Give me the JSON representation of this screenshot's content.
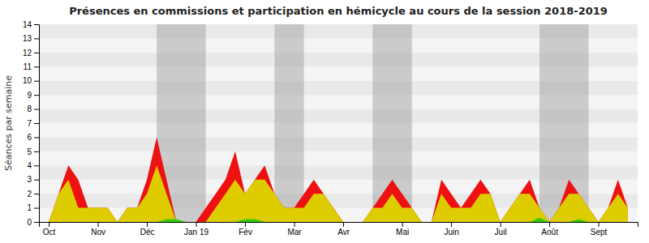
{
  "chart_data": {
    "type": "area",
    "title": "Présences en commissions et participation en hémicycle au cours de la session 2018-2019",
    "ylabel": "Séances par semaine",
    "categories": [
      "Oct",
      null,
      null,
      null,
      null,
      "Nov",
      null,
      null,
      null,
      null,
      "Déc",
      null,
      null,
      null,
      null,
      "Jan 19",
      null,
      null,
      null,
      null,
      "Fév",
      null,
      null,
      null,
      null,
      "Mar",
      null,
      null,
      null,
      null,
      "Avr",
      null,
      null,
      null,
      null,
      null,
      "Mai",
      null,
      null,
      null,
      null,
      "Juin",
      null,
      null,
      null,
      null,
      "Juil",
      null,
      null,
      null,
      null,
      "Août",
      null,
      null,
      null,
      null,
      "Sept",
      null,
      null,
      null
    ],
    "series": [
      {
        "color": "#ee1111",
        "values": [
          0,
          2,
          4,
          3,
          1,
          1,
          1,
          0,
          1,
          1,
          3,
          6,
          3,
          0,
          0,
          0,
          1,
          2,
          3,
          5,
          2,
          3,
          4,
          2,
          1,
          1,
          2,
          3,
          2,
          1,
          0,
          0,
          0,
          1,
          2,
          3,
          2,
          1,
          0,
          0,
          3,
          2,
          1,
          2,
          3,
          2,
          0,
          1,
          2,
          3,
          1,
          0,
          1,
          3,
          2,
          1,
          0,
          1,
          3,
          1
        ]
      },
      {
        "color": "#ddcc00",
        "values": [
          0,
          2,
          3,
          1,
          1,
          1,
          1,
          0,
          1,
          1,
          2,
          4,
          2,
          0,
          0,
          0,
          0,
          1,
          2,
          3,
          2,
          3,
          3,
          2,
          1,
          1,
          1,
          2,
          2,
          1,
          0,
          0,
          0,
          1,
          1,
          2,
          1,
          1,
          0,
          0,
          2,
          1,
          1,
          1,
          2,
          2,
          0,
          1,
          2,
          2,
          1,
          0,
          1,
          2,
          2,
          1,
          0,
          1,
          2,
          1
        ]
      },
      {
        "color": "#33cc00",
        "values": [
          0,
          0,
          0,
          0,
          0,
          0,
          0,
          0,
          0,
          0,
          0,
          0,
          0.2,
          0.2,
          0,
          0,
          0,
          0,
          0,
          0,
          0.2,
          0.2,
          0,
          0,
          0,
          0,
          0,
          0,
          0,
          0,
          0,
          0,
          0,
          0,
          0,
          0,
          0,
          0,
          0,
          0,
          0,
          0,
          0,
          0,
          0,
          0,
          0,
          0,
          0,
          0,
          0.3,
          0,
          0,
          0,
          0.2,
          0,
          0,
          0,
          0,
          0
        ]
      }
    ],
    "bands": [
      [
        11,
        16
      ],
      [
        23,
        26
      ],
      [
        33,
        37
      ],
      [
        50,
        55
      ]
    ],
    "ylim": [
      0,
      14
    ],
    "yticks": [
      0,
      1,
      2,
      3,
      4,
      5,
      6,
      7,
      8,
      9,
      10,
      11,
      12,
      13,
      14
    ]
  }
}
